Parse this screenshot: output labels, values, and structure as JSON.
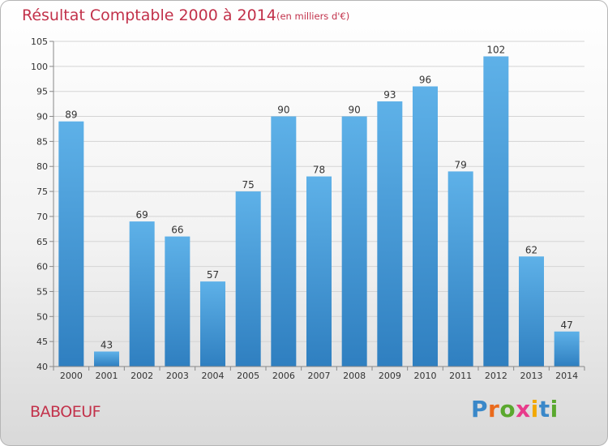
{
  "header": {
    "title": "Résultat Comptable 2000 à 2014",
    "subtitle": "(en milliers d'€)"
  },
  "footer": {
    "commune": "BABOEUF",
    "logo_text": "Proxiti"
  },
  "colors": {
    "bar_top": "#5eb1e8",
    "bar_bottom": "#2f7fc0",
    "title": "#c2314a",
    "logo": [
      "#3a88c9",
      "#ea6a1c",
      "#5aa82e",
      "#e83b8b",
      "#f2a800",
      "#3a88c9",
      "#5aa82e"
    ]
  },
  "chart_data": {
    "type": "bar",
    "title": "Résultat Comptable 2000 à 2014",
    "subtitle": "(en milliers d'€)",
    "categories": [
      "2000",
      "2001",
      "2002",
      "2003",
      "2004",
      "2005",
      "2006",
      "2007",
      "2008",
      "2009",
      "2010",
      "2011",
      "2012",
      "2013",
      "2014"
    ],
    "values": [
      89,
      43,
      69,
      66,
      57,
      75,
      90,
      78,
      90,
      93,
      96,
      79,
      102,
      62,
      47
    ],
    "ylim": [
      40,
      105
    ],
    "yticks": [
      40,
      45,
      50,
      55,
      60,
      65,
      70,
      75,
      80,
      85,
      90,
      95,
      100,
      105
    ],
    "grid": true,
    "xlabel": "",
    "ylabel": ""
  }
}
